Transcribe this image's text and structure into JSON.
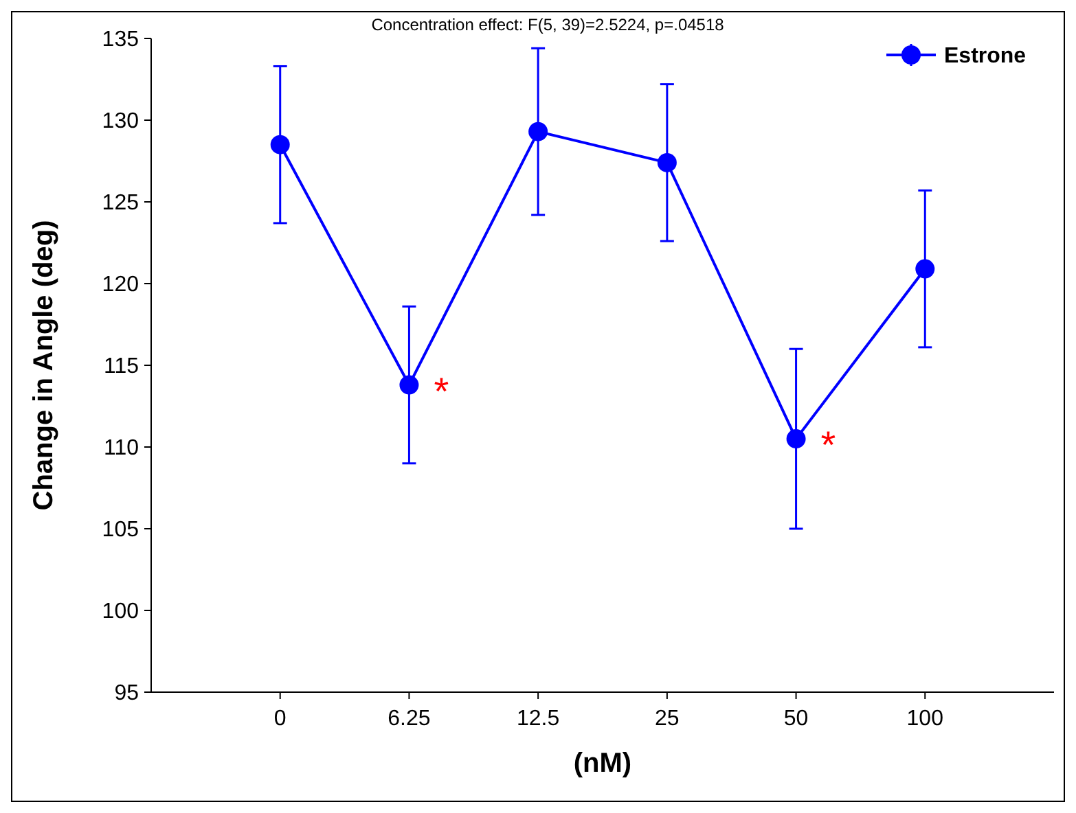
{
  "chart_data": {
    "type": "line",
    "title": "Concentration effect: F(5, 39)=2.5224, p=.04518",
    "xlabel": "(nM)",
    "ylabel": "Change in Angle (deg)",
    "categories": [
      "0",
      "6.25",
      "12.5",
      "25",
      "50",
      "100"
    ],
    "series": [
      {
        "name": "Estrone",
        "color": "#0000ff",
        "values": [
          128.5,
          113.8,
          129.3,
          127.4,
          110.5,
          120.9
        ],
        "errors": [
          4.8,
          4.8,
          5.1,
          4.8,
          5.5,
          4.8
        ]
      }
    ],
    "ylim": [
      95,
      135
    ],
    "yticks": [
      95,
      100,
      105,
      110,
      115,
      120,
      125,
      130,
      135
    ],
    "grid": false,
    "legend": "top right",
    "marker": "circle",
    "line_style": "solid",
    "annotations": [
      {
        "text": "*",
        "x": "6.25",
        "y": 113.8
      },
      {
        "text": "*",
        "x": "50",
        "y": 110.5
      }
    ]
  }
}
